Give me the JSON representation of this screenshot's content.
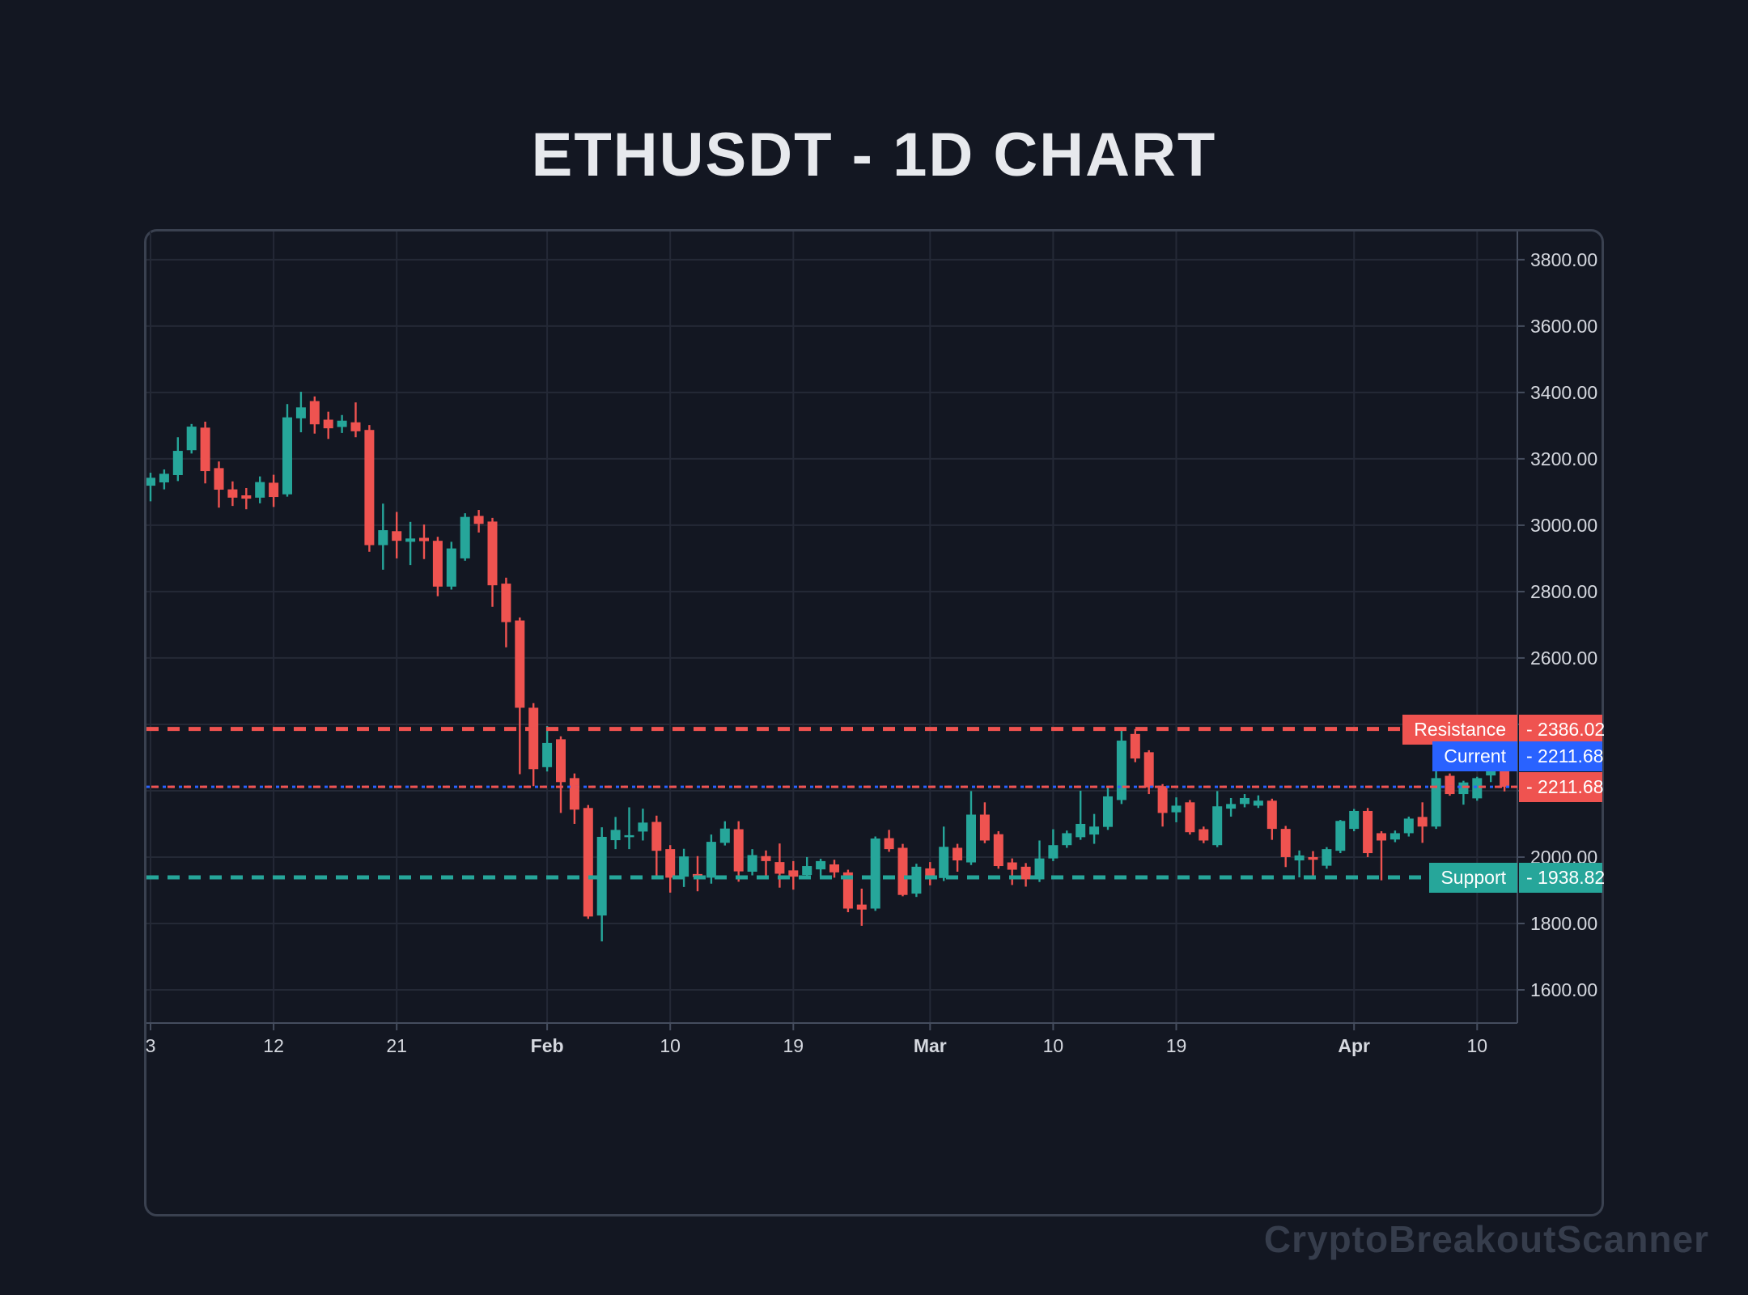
{
  "title": "ETHUSDT - 1D CHART",
  "watermark": "CryptoBreakoutScanner",
  "colors": {
    "background": "#131722",
    "panel_border": "#3A4150",
    "grid": "#242936",
    "axis_line": "#454D5E",
    "axis_text": "#D5D8DF",
    "up_candle": "#26A69A",
    "down_candle": "#EF5350",
    "resistance": "#EF5350",
    "support": "#26A69A",
    "current_annotation": "#2962FF",
    "current_price_tag": "#EF5350",
    "title_text": "#E7E9ED",
    "watermark_text": "#363D4C"
  },
  "levels": {
    "resistance": {
      "label": "Resistance",
      "value": "2386.02",
      "value_display": "- 2386.02",
      "price": 2386.02
    },
    "current": {
      "label": "Current",
      "value": "2211.68",
      "value_display": "- 2211.68",
      "price": 2211.68
    },
    "support": {
      "label": "Support",
      "value": "1938.82",
      "value_display": "- 1938.82",
      "price": 1938.82
    }
  },
  "chart_data": {
    "type": "candlestick",
    "title": "ETHUSDT - 1D CHART",
    "symbol": "ETHUSDT",
    "timeframe": "1D",
    "legend_position": "none",
    "grid": true,
    "last_close": 2211.68,
    "price_axis": {
      "min": 1500,
      "max": 3885,
      "grid_step": 200,
      "ticks": [
        {
          "label": "3800.00",
          "price": 3800
        },
        {
          "label": "3600.00",
          "price": 3600
        },
        {
          "label": "3400.00",
          "price": 3400
        },
        {
          "label": "3200.00",
          "price": 3200
        },
        {
          "label": "3000.00",
          "price": 3000
        },
        {
          "label": "2800.00",
          "price": 2800
        },
        {
          "label": "2600.00",
          "price": 2600
        },
        {
          "label": "2400.00",
          "price": 2400
        },
        {
          "label": "2200.00",
          "price": 2200
        },
        {
          "label": "2000.00",
          "price": 2000
        },
        {
          "label": "1800.00",
          "price": 1800
        },
        {
          "label": "1600.00",
          "price": 1600
        }
      ]
    },
    "time_axis": {
      "start_date": "Jan 3",
      "end_date": "Apr 12",
      "ticks": [
        {
          "label": "3",
          "i": 0,
          "bold": false
        },
        {
          "label": "12",
          "i": 9,
          "bold": false
        },
        {
          "label": "21",
          "i": 18,
          "bold": false
        },
        {
          "label": "Feb",
          "i": 29,
          "bold": true
        },
        {
          "label": "10",
          "i": 38,
          "bold": false
        },
        {
          "label": "19",
          "i": 47,
          "bold": false
        },
        {
          "label": "Mar",
          "i": 57,
          "bold": true
        },
        {
          "label": "10",
          "i": 66,
          "bold": false
        },
        {
          "label": "19",
          "i": 75,
          "bold": false
        },
        {
          "label": "Apr",
          "i": 88,
          "bold": true
        },
        {
          "label": "10",
          "i": 97,
          "bold": false
        }
      ]
    },
    "levels": {
      "resistance": 2386.02,
      "current": 2211.68,
      "support": 1938.82
    },
    "candles_ohlc": [
      [
        3119,
        3158,
        3072,
        3143
      ],
      [
        3129,
        3168,
        3108,
        3155
      ],
      [
        3151,
        3265,
        3133,
        3224
      ],
      [
        3226,
        3305,
        3216,
        3297
      ],
      [
        3294,
        3312,
        3126,
        3163
      ],
      [
        3172,
        3192,
        3053,
        3107
      ],
      [
        3108,
        3132,
        3058,
        3083
      ],
      [
        3090,
        3112,
        3048,
        3080
      ],
      [
        3083,
        3147,
        3066,
        3130
      ],
      [
        3128,
        3152,
        3055,
        3085
      ],
      [
        3093,
        3365,
        3086,
        3325
      ],
      [
        3322,
        3402,
        3280,
        3355
      ],
      [
        3374,
        3388,
        3276,
        3304
      ],
      [
        3318,
        3342,
        3260,
        3292
      ],
      [
        3296,
        3332,
        3278,
        3315
      ],
      [
        3310,
        3370,
        3265,
        3283
      ],
      [
        3287,
        3302,
        2920,
        2940
      ],
      [
        2940,
        3065,
        2866,
        2985
      ],
      [
        2982,
        3040,
        2900,
        2953
      ],
      [
        2950,
        3010,
        2880,
        2960
      ],
      [
        2962,
        3002,
        2898,
        2952
      ],
      [
        2953,
        2965,
        2786,
        2815
      ],
      [
        2815,
        2950,
        2806,
        2930
      ],
      [
        2900,
        3036,
        2893,
        3025
      ],
      [
        3028,
        3046,
        2978,
        3004
      ],
      [
        3011,
        3022,
        2754,
        2819
      ],
      [
        2824,
        2842,
        2632,
        2708
      ],
      [
        2713,
        2722,
        2250,
        2450
      ],
      [
        2450,
        2464,
        2214,
        2265
      ],
      [
        2271,
        2395,
        2258,
        2344
      ],
      [
        2355,
        2364,
        2133,
        2226
      ],
      [
        2238,
        2252,
        2100,
        2143
      ],
      [
        2148,
        2157,
        1814,
        1821
      ],
      [
        1824,
        2090,
        1746,
        2061
      ],
      [
        2051,
        2121,
        2024,
        2082
      ],
      [
        2060,
        2150,
        2024,
        2066
      ],
      [
        2077,
        2146,
        2050,
        2104
      ],
      [
        2106,
        2125,
        1934,
        2019
      ],
      [
        2024,
        2036,
        1893,
        1938
      ],
      [
        1941,
        2025,
        1910,
        2002
      ],
      [
        1949,
        2003,
        1897,
        1940
      ],
      [
        1938,
        2068,
        1920,
        2046
      ],
      [
        2043,
        2108,
        2035,
        2086
      ],
      [
        2084,
        2108,
        1926,
        1957
      ],
      [
        1956,
        2024,
        1945,
        2006
      ],
      [
        2003,
        2020,
        1938,
        1988
      ],
      [
        1985,
        2041,
        1908,
        1950
      ],
      [
        1960,
        1988,
        1902,
        1941
      ],
      [
        1946,
        2000,
        1936,
        1973
      ],
      [
        1963,
        1995,
        1940,
        1988
      ],
      [
        1978,
        1992,
        1938,
        1954
      ],
      [
        1954,
        1962,
        1834,
        1845
      ],
      [
        1857,
        1905,
        1793,
        1842
      ],
      [
        1845,
        2062,
        1838,
        2056
      ],
      [
        2057,
        2082,
        2016,
        2024
      ],
      [
        2028,
        2040,
        1882,
        1886
      ],
      [
        1890,
        1980,
        1880,
        1971
      ],
      [
        1966,
        1985,
        1915,
        1938
      ],
      [
        1937,
        2092,
        1928,
        2031
      ],
      [
        2028,
        2040,
        1956,
        1990
      ],
      [
        1984,
        2199,
        1976,
        2128
      ],
      [
        2128,
        2165,
        2042,
        2050
      ],
      [
        2069,
        2078,
        1965,
        1973
      ],
      [
        1984,
        1996,
        1916,
        1962
      ],
      [
        1971,
        1982,
        1911,
        1933
      ],
      [
        1933,
        2050,
        1925,
        1996
      ],
      [
        1996,
        2084,
        1988,
        2036
      ],
      [
        2036,
        2080,
        2028,
        2072
      ],
      [
        2060,
        2200,
        2052,
        2100
      ],
      [
        2068,
        2130,
        2040,
        2092
      ],
      [
        2091,
        2210,
        2082,
        2183
      ],
      [
        2172,
        2388,
        2160,
        2351
      ],
      [
        2371,
        2386,
        2286,
        2297
      ],
      [
        2316,
        2322,
        2190,
        2210
      ],
      [
        2214,
        2220,
        2092,
        2133
      ],
      [
        2135,
        2180,
        2105,
        2155
      ],
      [
        2165,
        2172,
        2068,
        2075
      ],
      [
        2084,
        2092,
        2042,
        2050
      ],
      [
        2036,
        2199,
        2030,
        2153
      ],
      [
        2146,
        2178,
        2122,
        2160
      ],
      [
        2160,
        2190,
        2150,
        2178
      ],
      [
        2155,
        2186,
        2148,
        2170
      ],
      [
        2170,
        2176,
        2052,
        2085
      ],
      [
        2085,
        2094,
        1970,
        2000
      ],
      [
        1990,
        2020,
        1939,
        2005
      ],
      [
        2000,
        2018,
        1938,
        1992
      ],
      [
        1974,
        2030,
        1965,
        2024
      ],
      [
        2019,
        2112,
        2012,
        2109
      ],
      [
        2085,
        2145,
        2078,
        2139
      ],
      [
        2139,
        2148,
        2000,
        2012
      ],
      [
        2072,
        2078,
        1930,
        2050
      ],
      [
        2053,
        2080,
        2045,
        2072
      ],
      [
        2072,
        2122,
        2062,
        2116
      ],
      [
        2121,
        2165,
        2043,
        2092
      ],
      [
        2092,
        2274,
        2085,
        2238
      ],
      [
        2245,
        2252,
        2185,
        2190
      ],
      [
        2190,
        2230,
        2158,
        2225
      ],
      [
        2177,
        2242,
        2170,
        2238
      ],
      [
        2246,
        2330,
        2226,
        2282
      ],
      [
        2282,
        2290,
        2198,
        2211.68
      ]
    ]
  }
}
